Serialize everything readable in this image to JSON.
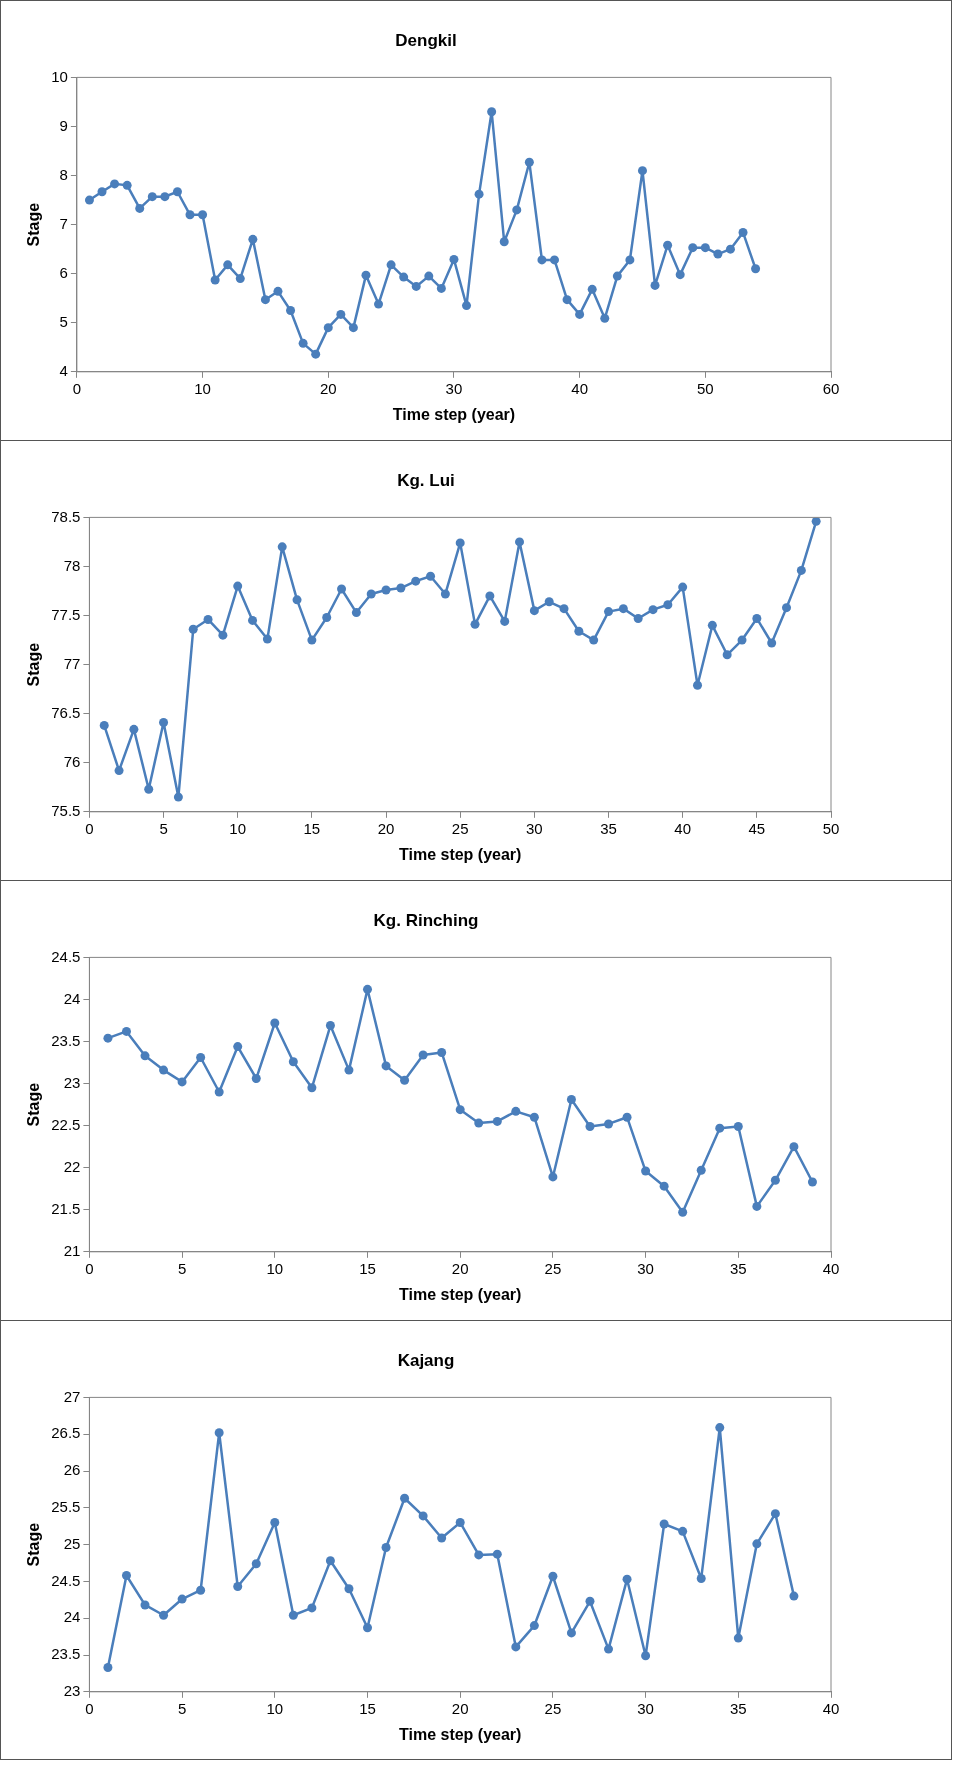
{
  "chart_data": [
    {
      "type": "line",
      "title": "Dengkil",
      "xlabel": "Time step (year)",
      "ylabel": "Stage",
      "x": [
        1,
        2,
        3,
        4,
        5,
        6,
        7,
        8,
        9,
        10,
        11,
        12,
        13,
        14,
        15,
        16,
        17,
        18,
        19,
        20,
        21,
        22,
        23,
        24,
        25,
        26,
        27,
        28,
        29,
        30,
        31,
        32,
        33,
        34,
        35,
        36,
        37,
        38,
        39,
        40,
        41,
        42,
        43,
        44,
        45,
        46,
        47,
        48,
        49,
        50,
        51,
        52,
        53,
        54
      ],
      "series": [
        {
          "color": "#4a7ebb",
          "values": [
            7.5,
            7.67,
            7.83,
            7.8,
            7.33,
            7.57,
            7.57,
            7.67,
            7.2,
            7.2,
            5.87,
            6.18,
            5.9,
            6.7,
            5.47,
            5.64,
            5.25,
            4.58,
            4.36,
            4.9,
            5.17,
            4.9,
            5.97,
            5.38,
            6.18,
            5.93,
            5.74,
            5.95,
            5.7,
            6.29,
            5.35,
            7.62,
            9.3,
            6.65,
            7.3,
            8.27,
            6.28,
            6.28,
            5.47,
            5.17,
            5.68,
            5.09,
            5.95,
            6.28,
            8.1,
            5.76,
            6.58,
            5.98,
            6.53,
            6.53,
            6.4,
            6.5,
            6.84,
            6.1
          ]
        }
      ],
      "xlim": [
        0,
        60
      ],
      "xticks": [
        0,
        10,
        20,
        30,
        40,
        50,
        60
      ],
      "ylim": [
        4,
        10
      ],
      "yticks": [
        4,
        5,
        6,
        7,
        8,
        9,
        10
      ],
      "grid": false,
      "legend": false,
      "marker": "circle",
      "line_style": "solid"
    },
    {
      "type": "line",
      "title": "Kg. Lui",
      "xlabel": "Time step (year)",
      "ylabel": "Stage",
      "x": [
        1,
        2,
        3,
        4,
        5,
        6,
        7,
        8,
        9,
        10,
        11,
        12,
        13,
        14,
        15,
        16,
        17,
        18,
        19,
        20,
        21,
        22,
        23,
        24,
        25,
        26,
        27,
        28,
        29,
        30,
        31,
        32,
        33,
        34,
        35,
        36,
        37,
        38,
        39,
        40,
        41,
        42,
        43,
        44,
        45,
        46,
        47,
        48,
        49
      ],
      "series": [
        {
          "color": "#4a7ebb",
          "values": [
            76.38,
            75.92,
            76.34,
            75.73,
            76.41,
            75.65,
            77.36,
            77.46,
            77.3,
            77.8,
            77.45,
            77.26,
            78.2,
            77.66,
            77.25,
            77.48,
            77.77,
            77.53,
            77.72,
            77.76,
            77.78,
            77.85,
            77.9,
            77.72,
            78.24,
            77.41,
            77.7,
            77.44,
            78.25,
            77.55,
            77.64,
            77.57,
            77.34,
            77.25,
            77.54,
            77.57,
            77.47,
            77.56,
            77.61,
            77.79,
            76.79,
            77.4,
            77.1,
            77.25,
            77.47,
            77.22,
            77.58,
            77.96,
            78.46
          ]
        }
      ],
      "xlim": [
        0,
        50
      ],
      "xticks": [
        0,
        5,
        10,
        15,
        20,
        25,
        30,
        35,
        40,
        45,
        50
      ],
      "ylim": [
        75.5,
        78.5
      ],
      "yticks": [
        75.5,
        76,
        76.5,
        77,
        77.5,
        78,
        78.5
      ],
      "grid": false,
      "legend": false,
      "marker": "circle",
      "line_style": "solid"
    },
    {
      "type": "line",
      "title": "Kg. Rinching",
      "xlabel": "Time step (year)",
      "ylabel": "Stage",
      "x": [
        1,
        2,
        3,
        4,
        5,
        6,
        7,
        8,
        9,
        10,
        11,
        12,
        13,
        14,
        15,
        16,
        17,
        18,
        19,
        20,
        21,
        22,
        23,
        24,
        25,
        26,
        27,
        28,
        29,
        30,
        31,
        32,
        33,
        34,
        35,
        36,
        37,
        38,
        39
      ],
      "series": [
        {
          "color": "#4a7ebb",
          "values": [
            23.54,
            23.62,
            23.33,
            23.16,
            23.02,
            23.31,
            22.9,
            23.44,
            23.06,
            23.72,
            23.26,
            22.95,
            23.69,
            23.16,
            24.12,
            23.21,
            23.04,
            23.34,
            23.37,
            22.69,
            22.53,
            22.55,
            22.67,
            22.6,
            21.89,
            22.81,
            22.49,
            22.52,
            22.6,
            21.96,
            21.78,
            21.47,
            21.97,
            22.47,
            22.49,
            21.54,
            21.85,
            22.25,
            21.83
          ]
        }
      ],
      "xlim": [
        0,
        40
      ],
      "xticks": [
        0,
        5,
        10,
        15,
        20,
        25,
        30,
        35,
        40
      ],
      "ylim": [
        21,
        24.5
      ],
      "yticks": [
        21,
        21.5,
        22,
        22.5,
        23,
        23.5,
        24,
        24.5
      ],
      "grid": false,
      "legend": false,
      "marker": "circle",
      "line_style": "solid"
    },
    {
      "type": "line",
      "title": "Kajang",
      "xlabel": "Time step (year)",
      "ylabel": "Stage",
      "x": [
        1,
        2,
        3,
        4,
        5,
        6,
        7,
        8,
        9,
        10,
        11,
        12,
        13,
        14,
        15,
        16,
        17,
        18,
        19,
        20,
        21,
        22,
        23,
        24,
        25,
        26,
        27,
        28,
        29,
        30,
        31,
        32,
        33,
        34,
        35,
        36,
        37,
        38
      ],
      "series": [
        {
          "color": "#4a7ebb",
          "values": [
            23.33,
            24.58,
            24.18,
            24.04,
            24.26,
            24.38,
            26.52,
            24.43,
            24.74,
            25.3,
            24.04,
            24.14,
            24.78,
            24.4,
            23.87,
            24.96,
            25.63,
            25.39,
            25.09,
            25.3,
            24.86,
            24.87,
            23.61,
            23.9,
            24.57,
            23.8,
            24.23,
            23.58,
            24.53,
            23.49,
            25.28,
            25.18,
            24.54,
            26.59,
            23.73,
            25.01,
            25.42,
            24.3
          ]
        }
      ],
      "xlim": [
        0,
        40
      ],
      "xticks": [
        0,
        5,
        10,
        15,
        20,
        25,
        30,
        35,
        40
      ],
      "ylim": [
        23,
        27
      ],
      "yticks": [
        23,
        23.5,
        24,
        24.5,
        25,
        25.5,
        26,
        26.5,
        27
      ],
      "grid": false,
      "legend": false,
      "marker": "circle",
      "line_style": "solid"
    }
  ]
}
